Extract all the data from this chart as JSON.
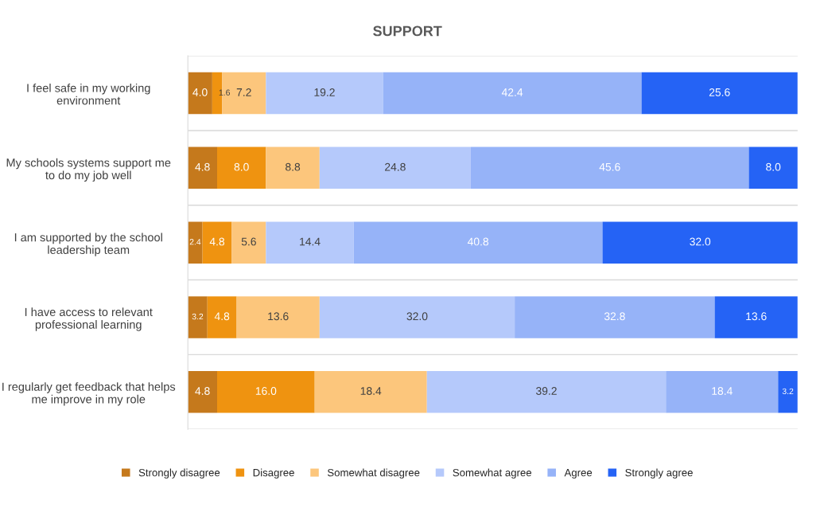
{
  "chart_data": {
    "type": "bar",
    "orientation": "horizontal",
    "stacked": true,
    "title": "SUPPORT",
    "categories": [
      "I feel safe in my working environment",
      "My schools systems support me to do my job well",
      "I am supported by the school leadership team",
      "I have access to relevant professional learning",
      "I regularly get feedback that helps me improve in my role"
    ],
    "series": [
      {
        "name": "Strongly disagree",
        "color": "#c5791c",
        "values": [
          4.0,
          4.8,
          2.4,
          3.2,
          4.8
        ],
        "value_labels": [
          "4.0",
          "4.8",
          "2.4",
          "3.2",
          "4.8"
        ]
      },
      {
        "name": "Disagree",
        "color": "#ef9310",
        "values": [
          1.6,
          8.0,
          4.8,
          4.8,
          16.0
        ],
        "value_labels": [
          "1.6",
          "8.0",
          "4.8",
          "4.8",
          "16.0"
        ]
      },
      {
        "name": "Somewhat disagree",
        "color": "#fcc67c",
        "values": [
          7.2,
          8.8,
          5.6,
          13.6,
          18.4
        ],
        "value_labels": [
          "7.2",
          "8.8",
          "5.6",
          "13.6",
          "18.4"
        ]
      },
      {
        "name": "Somewhat agree",
        "color": "#b5c9fb",
        "values": [
          19.2,
          24.8,
          14.4,
          32.0,
          39.2
        ],
        "value_labels": [
          "19.2",
          "24.8",
          "14.4",
          "32.0",
          "39.2"
        ]
      },
      {
        "name": "Agree",
        "color": "#96b3f8",
        "values": [
          42.4,
          45.6,
          40.8,
          32.8,
          18.4
        ],
        "value_labels": [
          "42.4",
          "45.6",
          "40.8",
          "32.8",
          "18.4"
        ]
      },
      {
        "name": "Strongly agree",
        "color": "#2563f5",
        "values": [
          25.6,
          8.0,
          32.0,
          13.6,
          3.2
        ],
        "value_labels": [
          "25.6",
          "8.0",
          "32.0",
          "13.6",
          "3.2"
        ]
      }
    ],
    "legend": "bottom",
    "tick_labels": "y"
  }
}
